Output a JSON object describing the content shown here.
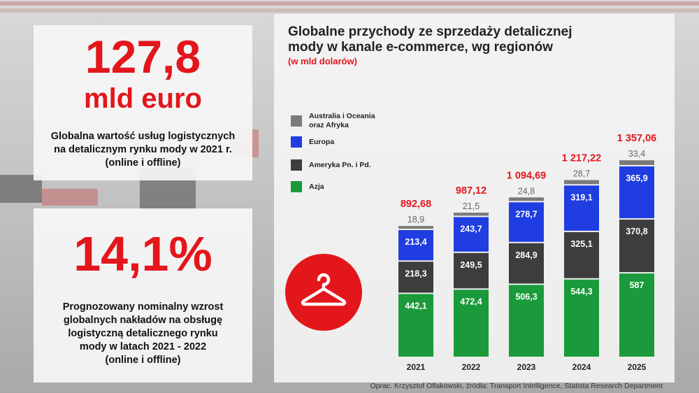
{
  "stat1": {
    "number": "127,8",
    "unit": "mld euro",
    "description": [
      "Globalna wartość usług logistycznych",
      "na  detalicznym rynku mody w 2021 r.",
      "(online i offline)"
    ]
  },
  "stat2": {
    "number": "14,1%",
    "description": [
      "Prognozowany nominalny wzrost",
      "globalnych nakładów na obsługę",
      "logistyczną detalicznego rynku",
      "mody w latach 2021 - 2022",
      "(online i offline)"
    ]
  },
  "icon": "hanger-icon",
  "footer": "Oprac. Krzysztof Oflakowski, źródła: Transport Intelligence, Statista Research Department",
  "colors": {
    "accent": "#e3161c",
    "azja": "#1a9a3a",
    "ameryka": "#3d3d3d",
    "europa": "#1f3de0",
    "australia": "#7a7a7a"
  },
  "chart_data": {
    "type": "bar",
    "stacked": true,
    "title": [
      "Globalne przychody ze sprzedaży detalicznej",
      "mody w kanale e-commerce, wg regionów"
    ],
    "subtitle": "(w mld dolarów)",
    "categories": [
      "2021",
      "2022",
      "2023",
      "2024",
      "2025"
    ],
    "series": [
      {
        "name": "Azja",
        "color": "#1a9a3a",
        "values": [
          442.1,
          472.4,
          506.3,
          544.3,
          587
        ],
        "labels": [
          "442,1",
          "472,4",
          "506,3",
          "544,3",
          "587"
        ]
      },
      {
        "name": "Ameryka Pn. i Pd.",
        "color": "#3d3d3d",
        "values": [
          218.3,
          249.5,
          284.9,
          325.1,
          370.8
        ],
        "labels": [
          "218,3",
          "249,5",
          "284,9",
          "325,1",
          "370,8"
        ]
      },
      {
        "name": "Europa",
        "color": "#1f3de0",
        "values": [
          213.4,
          243.7,
          278.7,
          319.1,
          365.9
        ],
        "labels": [
          "213,4",
          "243,7",
          "278,7",
          "319,1",
          "365,9"
        ]
      },
      {
        "name": "Australia i Oceania oraz Afryka",
        "legend_lines": [
          "Australia i Oceania",
          "oraz Afryka"
        ],
        "color": "#7a7a7a",
        "values": [
          18.9,
          21.5,
          24.8,
          28.7,
          33.4
        ],
        "labels": [
          "18,9",
          "21,5",
          "24,8",
          "28,7",
          "33,4"
        ]
      }
    ],
    "totals": [
      892.68,
      987.12,
      1094.69,
      1217.22,
      1357.06
    ],
    "total_labels": [
      "892,68",
      "987,12",
      "1 094,69",
      "1 217,22",
      "1 357,06"
    ],
    "legend_order": [
      3,
      2,
      1,
      0
    ],
    "legend_position": "left",
    "grid": false
  }
}
